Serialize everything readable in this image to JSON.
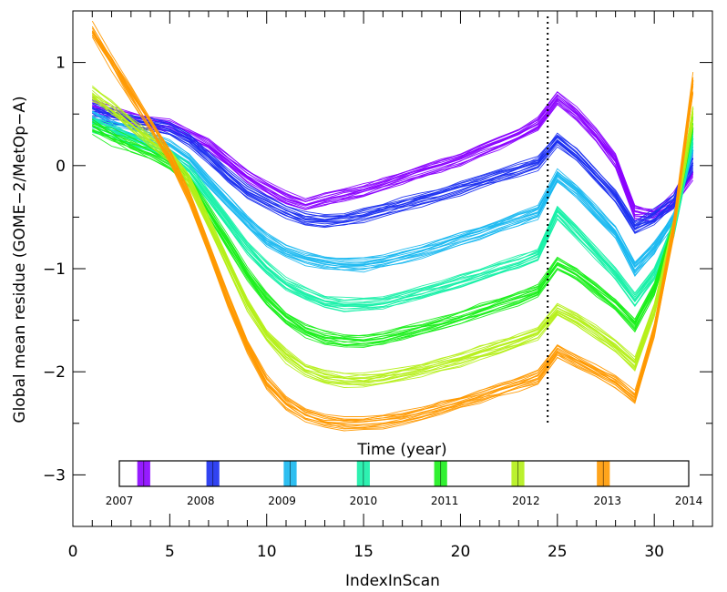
{
  "chart_data": {
    "type": "line",
    "title": "",
    "xlabel": "IndexInScan",
    "ylabel": "Global mean residue (GOME−2/MetOp−A)",
    "xlim": [
      0,
      33
    ],
    "ylim": [
      -3.5,
      1.5
    ],
    "x_ticks": [
      0,
      5,
      10,
      15,
      20,
      25,
      30
    ],
    "y_ticks": [
      1,
      0,
      -1,
      -2,
      -3
    ],
    "x_tick_labels": [
      "0",
      "5",
      "10",
      "15",
      "20",
      "25",
      "30"
    ],
    "y_tick_labels": [
      "1",
      "0",
      "−1",
      "−2",
      "−3"
    ],
    "grid": false,
    "vertical_line": {
      "x": 24.5,
      "style": "dotted"
    },
    "x": [
      1,
      2,
      3,
      4,
      5,
      6,
      7,
      8,
      9,
      10,
      11,
      12,
      13,
      14,
      15,
      16,
      17,
      18,
      19,
      20,
      21,
      22,
      23,
      24,
      25,
      26,
      27,
      28,
      29,
      30,
      31,
      32
    ],
    "series": [
      {
        "values": [
          0.6,
          0.5,
          0.45,
          0.42,
          0.38,
          0.3,
          0.2,
          0.05,
          -0.1,
          -0.22,
          -0.32,
          -0.38,
          -0.33,
          -0.28,
          -0.24,
          -0.18,
          -0.12,
          -0.06,
          0.0,
          0.06,
          0.14,
          0.22,
          0.3,
          0.4,
          0.65,
          0.5,
          0.3,
          0.05,
          -0.45,
          -0.48,
          -0.35,
          -0.05
        ]
      },
      {
        "values": [
          0.55,
          0.48,
          0.44,
          0.4,
          0.35,
          0.25,
          0.08,
          -0.1,
          -0.25,
          -0.35,
          -0.45,
          -0.52,
          -0.53,
          -0.52,
          -0.48,
          -0.43,
          -0.38,
          -0.33,
          -0.28,
          -0.22,
          -0.16,
          -0.1,
          -0.04,
          0.02,
          0.25,
          0.1,
          -0.1,
          -0.3,
          -0.6,
          -0.5,
          -0.35,
          0.05
        ]
      },
      {
        "values": [
          0.45,
          0.38,
          0.32,
          0.25,
          0.18,
          0.05,
          -0.15,
          -0.35,
          -0.55,
          -0.72,
          -0.83,
          -0.9,
          -0.94,
          -0.96,
          -0.96,
          -0.93,
          -0.88,
          -0.83,
          -0.77,
          -0.71,
          -0.65,
          -0.58,
          -0.52,
          -0.45,
          -0.1,
          -0.25,
          -0.45,
          -0.65,
          -1.0,
          -0.8,
          -0.5,
          0.2
        ]
      },
      {
        "values": [
          0.4,
          0.32,
          0.25,
          0.18,
          0.1,
          -0.05,
          -0.3,
          -0.55,
          -0.8,
          -1.0,
          -1.15,
          -1.25,
          -1.32,
          -1.35,
          -1.35,
          -1.33,
          -1.28,
          -1.23,
          -1.18,
          -1.12,
          -1.06,
          -1.0,
          -0.94,
          -0.87,
          -0.45,
          -0.65,
          -0.85,
          -1.05,
          -1.3,
          -1.05,
          -0.6,
          0.3
        ]
      },
      {
        "values": [
          0.38,
          0.28,
          0.2,
          0.12,
          0.02,
          -0.15,
          -0.45,
          -0.75,
          -1.05,
          -1.3,
          -1.48,
          -1.6,
          -1.67,
          -1.7,
          -1.7,
          -1.68,
          -1.63,
          -1.58,
          -1.53,
          -1.47,
          -1.41,
          -1.35,
          -1.29,
          -1.22,
          -0.95,
          -1.05,
          -1.2,
          -1.35,
          -1.55,
          -1.2,
          -0.6,
          0.4
        ]
      },
      {
        "values": [
          0.7,
          0.55,
          0.4,
          0.25,
          0.1,
          -0.15,
          -0.55,
          -0.95,
          -1.35,
          -1.65,
          -1.85,
          -1.98,
          -2.05,
          -2.08,
          -2.08,
          -2.06,
          -2.02,
          -1.98,
          -1.93,
          -1.88,
          -1.82,
          -1.76,
          -1.7,
          -1.63,
          -1.4,
          -1.5,
          -1.62,
          -1.75,
          -1.92,
          -1.4,
          -0.6,
          0.5
        ]
      },
      {
        "values": [
          1.3,
          1.0,
          0.7,
          0.4,
          0.1,
          -0.3,
          -0.8,
          -1.3,
          -1.75,
          -2.1,
          -2.3,
          -2.42,
          -2.48,
          -2.5,
          -2.5,
          -2.48,
          -2.45,
          -2.4,
          -2.35,
          -2.3,
          -2.24,
          -2.18,
          -2.12,
          -2.05,
          -1.8,
          -1.9,
          -2.0,
          -2.1,
          -2.25,
          -1.6,
          -0.6,
          0.8
        ]
      }
    ],
    "colorbar": {
      "title": "Time (year)",
      "year_labels": [
        "2007",
        "2008",
        "2009",
        "2010",
        "2011",
        "2012",
        "2013",
        "2014"
      ],
      "colors": [
        "#8a00ff",
        "#1a2ef0",
        "#19b8f0",
        "#17f0a8",
        "#19ef19",
        "#b5ef19",
        "#ff9900"
      ],
      "band_years": [
        2007.3,
        2008.15,
        2009.1,
        2010.0,
        2010.95,
        2011.9,
        2012.95
      ]
    }
  }
}
